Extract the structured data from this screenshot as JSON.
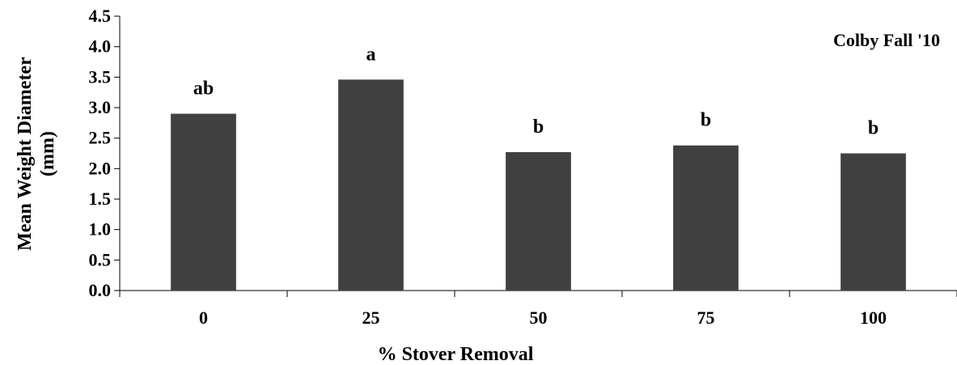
{
  "chart_data": {
    "type": "bar",
    "categories": [
      "0",
      "25",
      "50",
      "75",
      "100"
    ],
    "values": [
      2.9,
      3.46,
      2.27,
      2.38,
      2.25
    ],
    "significance_labels": [
      "ab",
      "a",
      "b",
      "b",
      "b"
    ],
    "annotation": "Colby Fall '10",
    "xlabel": "% Stover Removal",
    "ylabel_lines": [
      "Mean Weight Diameter",
      "(mm)"
    ],
    "ylim": [
      0,
      4.5
    ],
    "yticks": [
      "0.0",
      "0.5",
      "1.0",
      "1.5",
      "2.0",
      "2.5",
      "3.0",
      "3.5",
      "4.0",
      "4.5"
    ],
    "ytick_values": [
      0,
      0.5,
      1.0,
      1.5,
      2.0,
      2.5,
      3.0,
      3.5,
      4.0,
      4.5
    ],
    "grid": false,
    "legend": "none",
    "colors": {
      "bar": "#404040",
      "axis": "#000000",
      "text": "#000000"
    }
  }
}
